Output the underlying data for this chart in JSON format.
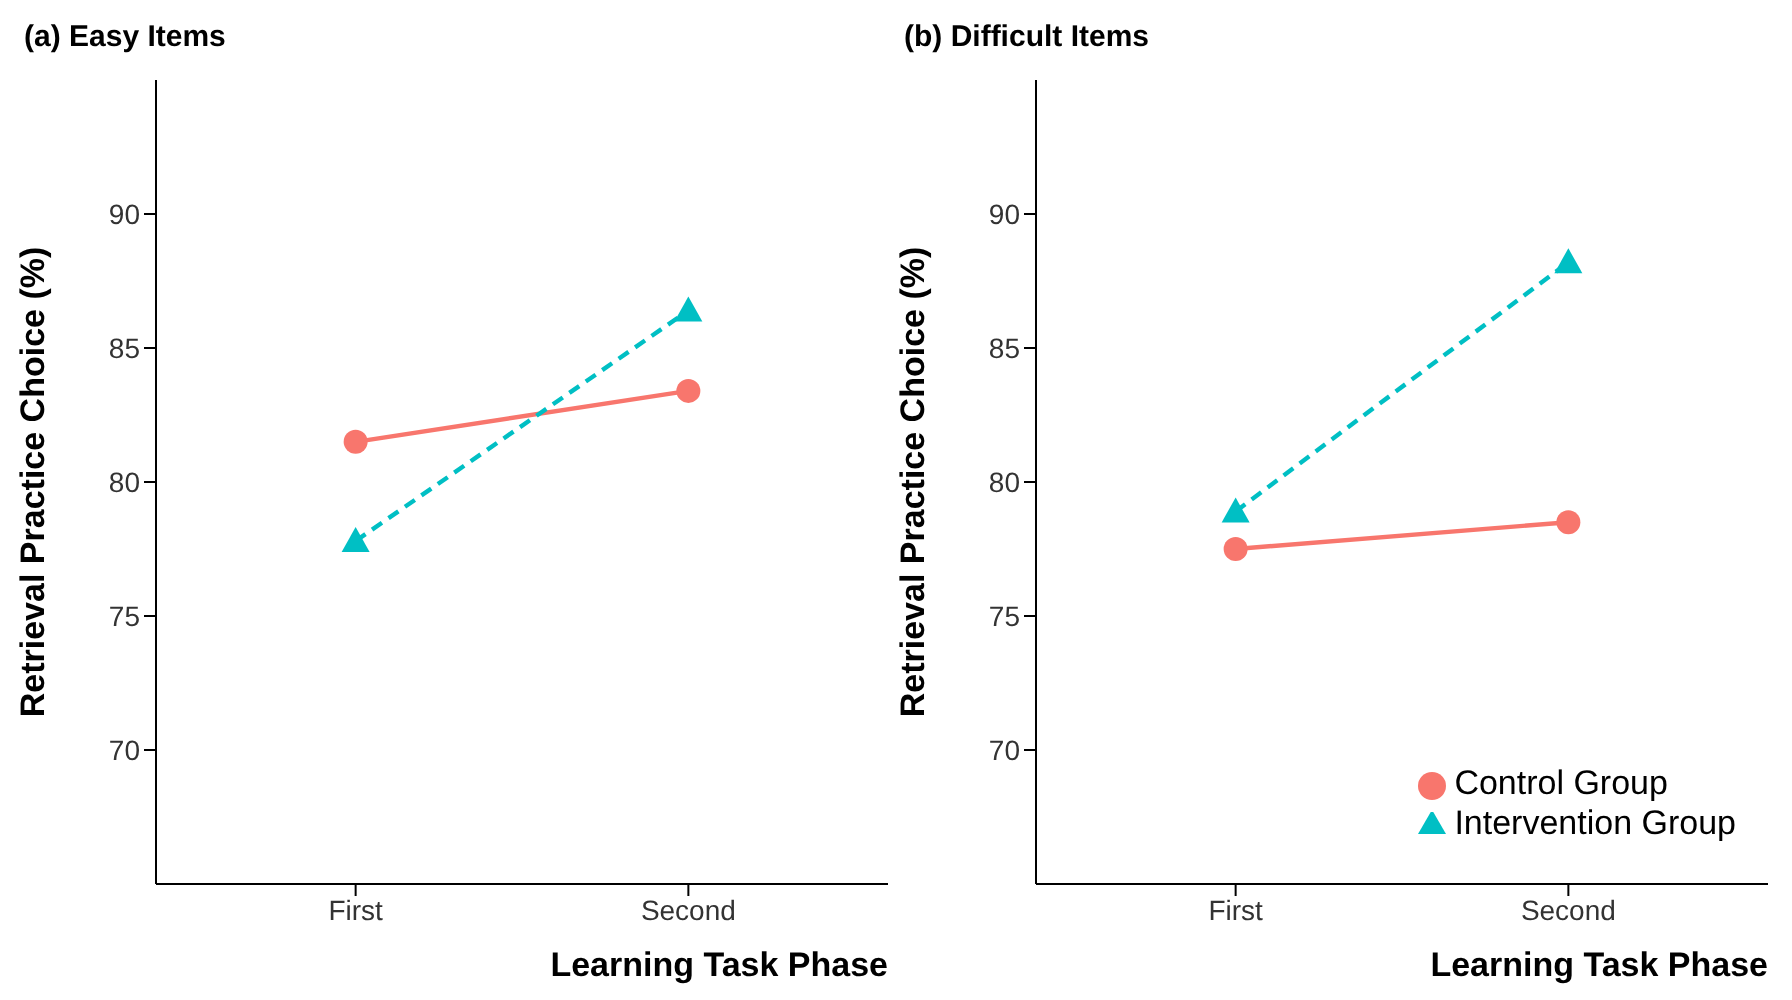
{
  "chart_data": [
    {
      "type": "line",
      "title": "(a) Easy Items",
      "xlabel": "Learning Task Phase",
      "ylabel": "Retrieval Practice Choice (%)",
      "categories": [
        "First",
        "Second"
      ],
      "ylim": [
        65,
        95
      ],
      "yticks": [
        70,
        75,
        80,
        85,
        90
      ],
      "grid": false,
      "legend": false,
      "series": [
        {
          "color": "#f8766d",
          "values": [
            81.5,
            83.4
          ],
          "marker": "circle",
          "line_style": "solid"
        },
        {
          "color": "#00bfc4",
          "values": [
            77.8,
            86.4
          ],
          "marker": "triangle",
          "line_style": "dashed"
        }
      ]
    },
    {
      "type": "line",
      "title": "(b) Difficult Items",
      "xlabel": "Learning Task Phase",
      "ylabel": "Retrieval Practice Choice (%)",
      "categories": [
        "First",
        "Second"
      ],
      "ylim": [
        65,
        95
      ],
      "yticks": [
        70,
        75,
        80,
        85,
        90
      ],
      "grid": false,
      "legend": "bottom right",
      "series": [
        {
          "name": "Control Group",
          "color": "#f8766d",
          "values": [
            77.5,
            78.5
          ],
          "marker": "circle",
          "line_style": "solid"
        },
        {
          "name": "Intervention Group",
          "color": "#00bfc4",
          "values": [
            78.9,
            88.2
          ],
          "marker": "triangle",
          "line_style": "dashed"
        }
      ]
    }
  ]
}
